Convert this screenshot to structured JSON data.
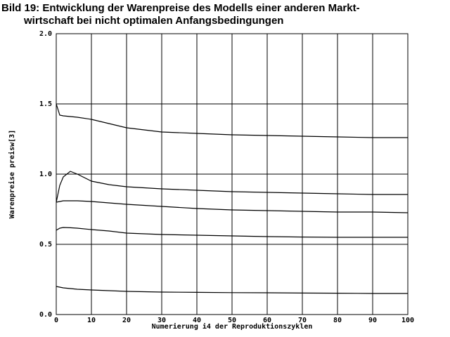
{
  "chart_data": {
    "type": "line",
    "title": [
      "Bild 19: Entwicklung der Warenpreise des Modells einer anderen Markt-",
      "wirtschaft bei nicht optimalen Anfangsbedingungen"
    ],
    "x_label": "Numerierung i4 der Reproduktionszyklen",
    "y_label": "Warenpreise preisw[3]",
    "x": [
      0,
      1,
      2,
      4,
      6,
      10,
      15,
      20,
      30,
      40,
      50,
      60,
      70,
      80,
      90,
      100
    ],
    "series": [
      {
        "color": "#000000",
        "values": [
          1.5,
          1.42,
          1.415,
          1.41,
          1.405,
          1.39,
          1.36,
          1.33,
          1.3,
          1.29,
          1.28,
          1.275,
          1.27,
          1.265,
          1.26,
          1.26
        ]
      },
      {
        "color": "#000000",
        "values": [
          0.8,
          0.92,
          0.98,
          1.02,
          1.0,
          0.95,
          0.925,
          0.91,
          0.895,
          0.885,
          0.875,
          0.87,
          0.865,
          0.86,
          0.855,
          0.855
        ]
      },
      {
        "color": "#000000",
        "values": [
          0.8,
          0.805,
          0.81,
          0.81,
          0.81,
          0.805,
          0.795,
          0.785,
          0.77,
          0.755,
          0.745,
          0.74,
          0.735,
          0.73,
          0.73,
          0.725
        ]
      },
      {
        "color": "#000000",
        "values": [
          0.6,
          0.615,
          0.62,
          0.618,
          0.615,
          0.605,
          0.595,
          0.58,
          0.57,
          0.565,
          0.56,
          0.555,
          0.552,
          0.55,
          0.55,
          0.55
        ]
      },
      {
        "color": "#000000",
        "values": [
          0.2,
          0.195,
          0.19,
          0.185,
          0.18,
          0.175,
          0.17,
          0.165,
          0.16,
          0.158,
          0.156,
          0.155,
          0.153,
          0.152,
          0.15,
          0.15
        ]
      }
    ],
    "xlim": [
      0,
      100
    ],
    "xticks": [
      0,
      10,
      20,
      30,
      40,
      50,
      60,
      70,
      80,
      90,
      100
    ],
    "ylim": [
      0,
      2
    ],
    "yticks": [
      {
        "value": 0,
        "label": "0.0"
      },
      {
        "value": 0.5,
        "label": "0.5"
      },
      {
        "value": 1,
        "label": "1.0"
      },
      {
        "value": 1.5,
        "label": "1.5"
      },
      {
        "value": 2,
        "label": "2.0"
      }
    ],
    "grid": true
  }
}
